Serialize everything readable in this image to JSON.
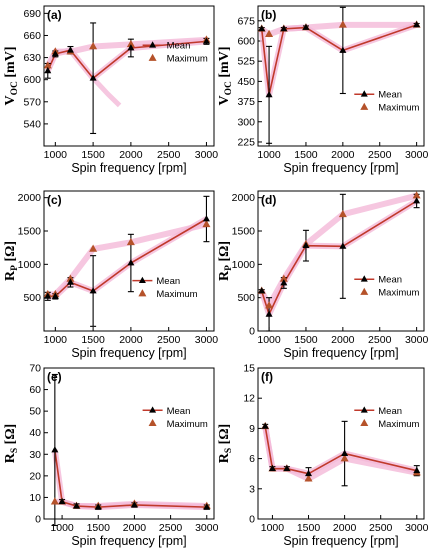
{
  "colors": {
    "line": "#c0392b",
    "glow": "#f4b9d8",
    "mean_marker": "#000000",
    "maximum_marker": "#b5522a",
    "error_bar": "#000000"
  },
  "chart_data": [
    {
      "panel": "(a)",
      "type": "line",
      "ylabel_main": "V",
      "ylabel_sub": "OC",
      "ylabel_unit": " [mV]",
      "xlabel": "Spin frequency [rpm]",
      "xlim": [
        850,
        3100
      ],
      "ylim": [
        510,
        700
      ],
      "xticks": [
        1000,
        1500,
        2000,
        2500,
        3000
      ],
      "yticks": [
        540,
        570,
        600,
        630,
        660,
        690
      ],
      "legend_position": "top-right",
      "series": [
        {
          "name": "Mean",
          "marker": "triangle",
          "x": [
            900,
            1000,
            1200,
            1500,
            2000,
            3000
          ],
          "y": [
            612,
            635,
            640,
            602,
            643,
            652
          ],
          "err": [
            10,
            4,
            5,
            75,
            12,
            4
          ]
        },
        {
          "name": "Maximum",
          "marker": "triangle",
          "x": [
            900,
            1000,
            1200,
            1500,
            2000,
            3000
          ],
          "y": [
            619,
            638,
            638,
            645,
            648,
            654
          ]
        }
      ],
      "extra_glow": [
        [
          1500,
          602
        ],
        [
          1700,
          580
        ],
        [
          1850,
          565
        ]
      ]
    },
    {
      "panel": "(b)",
      "type": "line",
      "ylabel_main": "V",
      "ylabel_sub": "OC",
      "ylabel_unit": " [mV]",
      "xlabel": "Spin frequency [rpm]",
      "xlim": [
        850,
        3100
      ],
      "ylim": [
        210,
        730
      ],
      "xticks": [
        1000,
        1500,
        2000,
        2500,
        3000
      ],
      "yticks": [
        225,
        300,
        375,
        450,
        525,
        600,
        675
      ],
      "legend_position": "center-right",
      "series": [
        {
          "name": "Mean",
          "marker": "triangle",
          "x": [
            900,
            1000,
            1200,
            1500,
            2000,
            3000
          ],
          "y": [
            645,
            400,
            645,
            650,
            565,
            660
          ],
          "err": [
            5,
            180,
            5,
            6,
            160,
            5
          ]
        },
        {
          "name": "Maximum",
          "marker": "triangle",
          "x": [
            900,
            1000,
            1200,
            1500,
            2000,
            3000
          ],
          "y": [
            645,
            625,
            645,
            650,
            660,
            660
          ]
        }
      ]
    },
    {
      "panel": "(c)",
      "type": "line",
      "ylabel_main": "R",
      "ylabel_sub": "P",
      "ylabel_unit": " [Ω]",
      "xlabel": "Spin frequency [rpm]",
      "xlim": [
        850,
        3100
      ],
      "ylim": [
        0,
        2100
      ],
      "xticks": [
        1000,
        1500,
        2000,
        2500,
        3000
      ],
      "yticks": [
        500,
        1000,
        1500,
        2000
      ],
      "legend_position": "center",
      "series": [
        {
          "name": "Mean",
          "marker": "triangle",
          "x": [
            900,
            1000,
            1200,
            1500,
            2000,
            3000
          ],
          "y": [
            520,
            520,
            730,
            600,
            1020,
            1680
          ],
          "err": [
            60,
            40,
            70,
            530,
            430,
            340
          ]
        },
        {
          "name": "Maximum",
          "marker": "triangle",
          "x": [
            900,
            1000,
            1200,
            1500,
            2000,
            3000
          ],
          "y": [
            550,
            550,
            780,
            1230,
            1330,
            1600
          ]
        }
      ]
    },
    {
      "panel": "(d)",
      "type": "line",
      "ylabel_main": "R",
      "ylabel_sub": "P",
      "ylabel_unit": " [Ω]",
      "xlabel": "Spin frequency [rpm]",
      "xlim": [
        850,
        3100
      ],
      "ylim": [
        0,
        2100
      ],
      "xticks": [
        1000,
        1500,
        2000,
        2500,
        3000
      ],
      "yticks": [
        0,
        500,
        1000,
        1500,
        2000
      ],
      "legend_position": "center-right",
      "series": [
        {
          "name": "Mean",
          "marker": "triangle",
          "x": [
            900,
            1000,
            1200,
            1500,
            2000,
            3000
          ],
          "y": [
            600,
            250,
            720,
            1280,
            1270,
            1950
          ],
          "err": [
            20,
            250,
            80,
            230,
            780,
            100
          ]
        },
        {
          "name": "Maximum",
          "marker": "triangle",
          "x": [
            900,
            1000,
            1200,
            1500,
            2000,
            3000
          ],
          "y": [
            600,
            380,
            780,
            1300,
            1750,
            2030
          ]
        }
      ]
    },
    {
      "panel": "(e)",
      "type": "line",
      "ylabel_main": "R",
      "ylabel_sub": "S",
      "ylabel_unit": " [Ω]",
      "xlabel": "Spin frequency [rpm]",
      "xlim": [
        750,
        3100
      ],
      "ylim": [
        0,
        70
      ],
      "xticks": [
        1000,
        1500,
        2000,
        2500,
        3000
      ],
      "yticks": [
        0,
        10,
        20,
        30,
        40,
        50,
        60,
        70
      ],
      "legend_position": "top-right",
      "series": [
        {
          "name": "Mean",
          "marker": "triangle",
          "x": [
            900,
            1000,
            1200,
            1500,
            2000,
            3000
          ],
          "y": [
            32,
            8,
            6,
            5.5,
            6.5,
            5.5
          ],
          "err": [
            35,
            1,
            1,
            1,
            1,
            1
          ]
        },
        {
          "name": "Maximum",
          "marker": "triangle",
          "x": [
            900,
            1000,
            1200,
            1500,
            2000,
            3000
          ],
          "y": [
            8,
            8,
            6,
            6,
            7,
            6
          ]
        }
      ]
    },
    {
      "panel": "(f)",
      "type": "line",
      "ylabel_main": "R",
      "ylabel_sub": "S",
      "ylabel_unit": " [Ω]",
      "xlabel": "Spin frequency [rpm]",
      "xlim": [
        800,
        3100
      ],
      "ylim": [
        0,
        15
      ],
      "xticks": [
        1000,
        1500,
        2000,
        2500,
        3000
      ],
      "yticks": [
        0,
        3,
        6,
        9,
        12,
        15
      ],
      "legend_position": "top-right",
      "series": [
        {
          "name": "Mean",
          "marker": "triangle",
          "x": [
            900,
            1000,
            1200,
            1500,
            2000,
            3000
          ],
          "y": [
            9.2,
            5.0,
            5.0,
            4.5,
            6.5,
            4.8
          ],
          "err": [
            0.2,
            0.2,
            0.2,
            0.6,
            3.2,
            0.5
          ]
        },
        {
          "name": "Maximum",
          "marker": "triangle",
          "x": [
            900,
            1000,
            1200,
            1500,
            2000,
            3000
          ],
          "y": [
            9.2,
            5.0,
            5.0,
            4.0,
            6.0,
            4.6
          ]
        }
      ]
    }
  ]
}
